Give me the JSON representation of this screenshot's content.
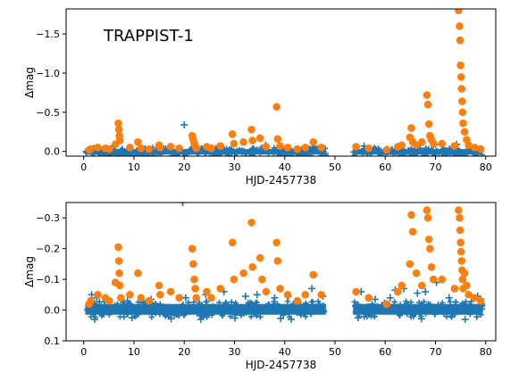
{
  "chart_data": [
    {
      "type": "scatter",
      "title": "TRAPPIST-1",
      "xlabel": "HJD-2457738",
      "ylabel": "Δmag",
      "xlim": [
        -3.5,
        82
      ],
      "ylim": [
        0.06,
        -1.82
      ],
      "y_inverted": true,
      "xticks": [
        0,
        10,
        20,
        30,
        40,
        50,
        60,
        70,
        80
      ],
      "xtick_labels": [
        "0",
        "10",
        "20",
        "30",
        "40",
        "50",
        "60",
        "70",
        "80"
      ],
      "yticks": [
        0.0,
        -0.5,
        -1.0,
        -1.5
      ],
      "ytick_labels": [
        "0.0",
        "−0.5",
        "−1.0",
        "−1.5"
      ],
      "grid": false,
      "series": [
        {
          "marker": "plus",
          "color": "#1f77b4",
          "band": {
            "y_min": -0.03,
            "y_max": 0.04,
            "segments": [
              [
                0.3,
                48.2
              ],
              [
                53.6,
                79.4
              ]
            ]
          },
          "x": [
            20.0,
            27.5,
            36.2,
            46.0,
            55.8,
            70.0,
            74.2
          ],
          "y": [
            -0.34,
            -0.05,
            -0.08,
            -0.06,
            -0.07,
            -0.09,
            -0.09
          ]
        },
        {
          "marker": "circle",
          "color": "#ff7f0e",
          "x": [
            1.1,
            1.4,
            2.8,
            4.3,
            5.1,
            6.3,
            6.9,
            7.0,
            7.1,
            7.2,
            9.2,
            10.8,
            11.4,
            13.0,
            15.0,
            15.2,
            17.3,
            19.0,
            21.6,
            21.8,
            22.0,
            22.2,
            22.4,
            24.5,
            25.4,
            27.2,
            29.6,
            29.9,
            31.8,
            33.4,
            33.6,
            35.1,
            36.3,
            38.4,
            38.6,
            39.1,
            40.6,
            42.5,
            44.1,
            45.7,
            47.3,
            54.2,
            56.7,
            60.3,
            62.5,
            63.3,
            64.9,
            65.2,
            65.5,
            66.2,
            67.3,
            68.3,
            68.5,
            68.7,
            68.9,
            69.2,
            69.6,
            71.3,
            73.8,
            74.6,
            74.8,
            74.9,
            75.0,
            75.1,
            75.2,
            75.3,
            75.4,
            75.5,
            75.8,
            76.2,
            76.6,
            77.8,
            79.0
          ],
          "y": [
            -0.02,
            -0.03,
            -0.05,
            -0.04,
            -0.03,
            -0.09,
            -0.36,
            -0.28,
            -0.2,
            -0.14,
            -0.05,
            -0.12,
            -0.04,
            -0.03,
            -0.08,
            -0.05,
            -0.06,
            -0.04,
            -0.2,
            -0.15,
            -0.1,
            -0.07,
            -0.04,
            -0.06,
            -0.04,
            -0.07,
            -0.22,
            -0.1,
            -0.12,
            -0.28,
            -0.14,
            -0.17,
            -0.06,
            -0.57,
            -0.16,
            -0.07,
            -0.05,
            -0.03,
            -0.05,
            -0.12,
            -0.05,
            -0.06,
            -0.04,
            -0.02,
            -0.06,
            -0.08,
            -0.18,
            -0.3,
            -0.12,
            -0.08,
            -0.12,
            -0.72,
            -0.6,
            -0.35,
            -0.2,
            -0.15,
            -0.1,
            -0.1,
            -0.07,
            -1.8,
            -1.6,
            -1.42,
            -1.1,
            -0.95,
            -0.8,
            -0.64,
            -0.5,
            -0.36,
            -0.25,
            -0.15,
            -0.08,
            -0.05,
            -0.03
          ]
        }
      ]
    },
    {
      "type": "scatter",
      "title": "",
      "xlabel": "HJD-2457738",
      "ylabel": "Δmag",
      "xlim": [
        -3.5,
        82
      ],
      "ylim": [
        0.1,
        -0.35
      ],
      "y_inverted": true,
      "xticks": [
        0,
        10,
        20,
        30,
        40,
        50,
        60,
        70,
        80
      ],
      "xtick_labels": [
        "0",
        "10",
        "20",
        "30",
        "40",
        "50",
        "60",
        "70",
        "80"
      ],
      "yticks": [
        0.1,
        0.0,
        -0.1,
        -0.2,
        -0.3
      ],
      "ytick_labels": [
        "0.1",
        "0.0",
        "−0.1",
        "−0.2",
        "−0.3"
      ],
      "grid": false,
      "series": [
        {
          "marker": "plus",
          "color": "#1f77b4",
          "band": {
            "y_min": -0.02,
            "y_max": 0.015,
            "segments": [
              [
                0.3,
                48.2
              ],
              [
                53.6,
                79.4
              ]
            ]
          },
          "x": [
            1.6,
            2.6,
            4.5,
            8.7,
            13.4,
            19.7,
            20.3,
            24.3,
            27.9,
            32.2,
            34.5,
            36.3,
            38.0,
            40.7,
            44.1,
            45.4,
            47.6,
            55.2,
            58.0,
            61.0,
            62.0,
            63.7,
            66.4,
            68.0,
            70.2,
            72.7,
            78.4,
            2.2,
            9.6,
            17.4,
            23.3,
            30.1,
            39.2,
            41.3,
            54.6,
            67.2,
            75.9
          ],
          "y": [
            -0.05,
            -0.04,
            -0.035,
            -0.03,
            -0.035,
            -0.35,
            -0.04,
            -0.05,
            -0.06,
            -0.045,
            -0.05,
            -0.06,
            -0.04,
            -0.045,
            -0.05,
            -0.07,
            -0.045,
            -0.06,
            -0.035,
            -0.04,
            -0.065,
            -0.07,
            -0.055,
            -0.06,
            -0.09,
            -0.04,
            -0.045,
            0.03,
            0.025,
            0.028,
            0.03,
            0.026,
            0.027,
            0.03,
            0.025,
            0.028,
            0.03
          ]
        },
        {
          "marker": "circle",
          "color": "#ff7f0e",
          "x": [
            1.1,
            1.4,
            2.8,
            4.3,
            5.1,
            6.3,
            6.9,
            7.0,
            7.1,
            7.2,
            7.4,
            9.2,
            10.8,
            11.4,
            13.0,
            15.0,
            15.2,
            17.3,
            19.0,
            21.6,
            21.8,
            22.0,
            22.2,
            22.4,
            24.5,
            25.4,
            27.2,
            29.6,
            29.9,
            31.8,
            33.4,
            33.6,
            35.1,
            35.5,
            36.3,
            38.4,
            38.6,
            39.1,
            40.6,
            42.5,
            44.1,
            45.7,
            47.3,
            54.2,
            56.7,
            60.3,
            62.5,
            63.3,
            64.9,
            65.2,
            65.5,
            66.2,
            67.3,
            68.3,
            68.5,
            68.7,
            68.9,
            69.2,
            69.6,
            71.3,
            73.8,
            74.6,
            74.8,
            74.9,
            75.0,
            75.1,
            75.2,
            75.3,
            75.4,
            75.5,
            75.8,
            76.2,
            76.6,
            77.8,
            79.0
          ],
          "y": [
            -0.02,
            -0.03,
            -0.05,
            -0.04,
            -0.03,
            -0.09,
            -0.205,
            -0.16,
            -0.12,
            -0.08,
            -0.04,
            -0.05,
            -0.12,
            -0.04,
            -0.03,
            -0.08,
            -0.05,
            -0.06,
            -0.04,
            -0.2,
            -0.15,
            -0.1,
            -0.07,
            -0.04,
            -0.06,
            -0.04,
            -0.07,
            -0.22,
            -0.1,
            -0.12,
            -0.285,
            -0.14,
            -0.17,
            -0.1,
            -0.06,
            -0.22,
            -0.16,
            -0.07,
            -0.05,
            -0.03,
            -0.05,
            -0.115,
            -0.05,
            -0.06,
            -0.04,
            -0.02,
            -0.06,
            -0.08,
            -0.15,
            -0.31,
            -0.255,
            -0.12,
            -0.08,
            -0.325,
            -0.3,
            -0.23,
            -0.2,
            -0.14,
            -0.1,
            -0.1,
            -0.07,
            -0.325,
            -0.3,
            -0.26,
            -0.22,
            -0.19,
            -0.16,
            -0.13,
            -0.1,
            -0.07,
            -0.12,
            -0.08,
            -0.05,
            -0.04,
            -0.03
          ]
        }
      ]
    }
  ]
}
